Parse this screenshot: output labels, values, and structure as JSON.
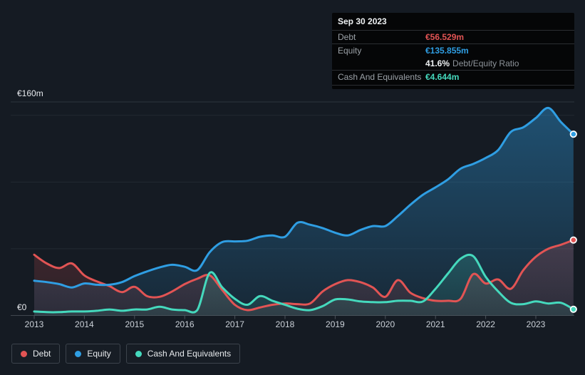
{
  "y_axis": {
    "top_label": "€160m",
    "zero_label": "€0"
  },
  "tooltip": {
    "date": "Sep 30 2023",
    "debt_label": "Debt",
    "debt_value": "€56.529m",
    "equity_label": "Equity",
    "equity_value": "€135.855m",
    "ratio_value": "41.6%",
    "ratio_label": "Debt/Equity Ratio",
    "cash_label": "Cash And Equivalents",
    "cash_value": "€4.644m"
  },
  "chart_data": {
    "type": "area",
    "title": "",
    "xlabel": "",
    "ylabel": "",
    "currency": "EUR",
    "ylim": [
      0,
      160
    ],
    "y_gridlines": [
      0,
      50,
      100,
      150,
      160
    ],
    "grid": "horizontal",
    "legend_position": "bottom-left",
    "x_tick_labels": [
      "2013",
      "2014",
      "2015",
      "2016",
      "2017",
      "2018",
      "2019",
      "2020",
      "2021",
      "2022",
      "2023"
    ],
    "x": [
      2013,
      2013.25,
      2013.5,
      2013.75,
      2014,
      2014.25,
      2014.5,
      2014.75,
      2015,
      2015.25,
      2015.5,
      2015.75,
      2016,
      2016.25,
      2016.5,
      2016.75,
      2017,
      2017.25,
      2017.5,
      2017.75,
      2018,
      2018.25,
      2018.5,
      2018.75,
      2019,
      2019.25,
      2019.5,
      2019.75,
      2020,
      2020.25,
      2020.5,
      2020.75,
      2021,
      2021.25,
      2021.5,
      2021.75,
      2022,
      2022.25,
      2022.5,
      2022.75,
      2023,
      2023.25,
      2023.5,
      2023.75
    ],
    "series": [
      {
        "name": "Debt",
        "color": "#e25454",
        "values": [
          45.5,
          39,
          35.5,
          39,
          30,
          25.5,
          22,
          17.5,
          21.5,
          14.5,
          14,
          18,
          23.5,
          27.5,
          30,
          19,
          8,
          4,
          6,
          8,
          9,
          8.5,
          9,
          18,
          23.5,
          26.5,
          25,
          21,
          14,
          26.5,
          17,
          13,
          11,
          11,
          12.5,
          31,
          24,
          27,
          20,
          34,
          44,
          50,
          53,
          56.529
        ]
      },
      {
        "name": "Equity",
        "color": "#2f9ee3",
        "values": [
          26,
          25,
          23.5,
          21,
          24,
          23,
          23,
          25,
          29.5,
          33,
          36,
          38,
          36.5,
          34,
          47.5,
          55,
          55.5,
          56,
          59,
          60,
          59,
          69.5,
          68,
          65.5,
          62,
          60,
          64,
          67,
          67,
          74.5,
          83,
          90.5,
          96,
          102,
          110,
          113.5,
          118,
          124,
          137.5,
          141,
          148,
          155.5,
          145,
          135.855
        ]
      },
      {
        "name": "Cash And Equivalents",
        "color": "#45d9bd",
        "values": [
          3,
          2.5,
          2.5,
          3,
          3,
          3.5,
          4.5,
          3.5,
          4.5,
          4.5,
          6.5,
          4.5,
          4,
          4,
          32,
          21,
          12.5,
          8,
          14.5,
          11,
          8,
          5,
          4,
          7,
          12,
          12,
          10.5,
          10,
          10,
          11,
          11,
          10.5,
          20,
          31.5,
          42.5,
          44.5,
          29,
          18,
          9.5,
          8.5,
          10.5,
          9,
          9.5,
          4.644
        ]
      }
    ]
  }
}
